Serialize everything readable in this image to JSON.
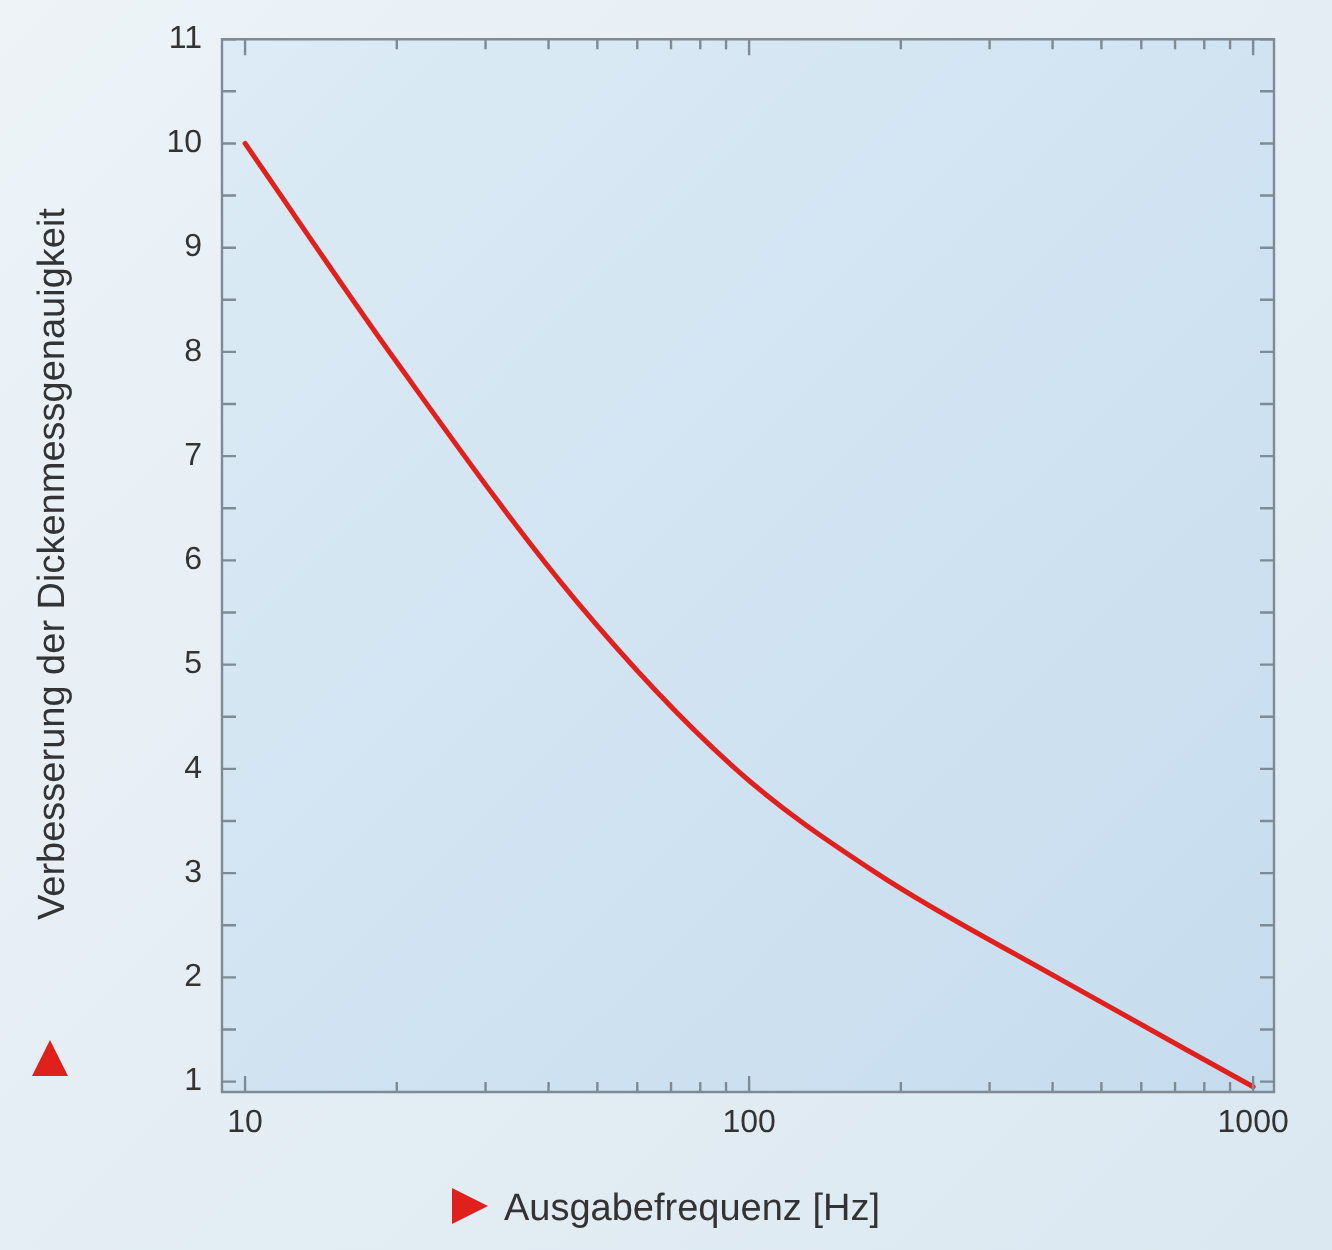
{
  "chart_data": {
    "type": "line",
    "xlabel": "Ausgabefrequenz [Hz]",
    "ylabel": "Verbesserung der Dickenmessgenauigkeit",
    "log": "x",
    "grid": false,
    "legend": false,
    "marker": "none",
    "line_style": "solid",
    "xlim": [
      9,
      1100
    ],
    "ylim": [
      0.9,
      11
    ],
    "xticks": [
      10,
      {
        "value": 20,
        "label": null
      },
      {
        "value": 30,
        "label": null
      },
      {
        "value": 40,
        "label": null
      },
      {
        "value": 50,
        "label": null
      },
      {
        "value": 60,
        "label": null
      },
      {
        "value": 70,
        "label": null
      },
      {
        "value": 80,
        "label": null
      },
      {
        "value": 90,
        "label": null
      },
      100,
      {
        "value": 200,
        "label": null
      },
      {
        "value": 300,
        "label": null
      },
      {
        "value": 400,
        "label": null
      },
      {
        "value": 500,
        "label": null
      },
      {
        "value": 600,
        "label": null
      },
      {
        "value": 700,
        "label": null
      },
      {
        "value": 800,
        "label": null
      },
      {
        "value": 900,
        "label": null
      },
      1000
    ],
    "yticks": [
      1,
      {
        "value": 1.5,
        "label": null
      },
      2,
      {
        "value": 2.5,
        "label": null
      },
      3,
      {
        "value": 3.5,
        "label": null
      },
      4,
      {
        "value": 4.5,
        "label": null
      },
      5,
      {
        "value": 5.5,
        "label": null
      },
      6,
      {
        "value": 6.5,
        "label": null
      },
      7,
      {
        "value": 7.5,
        "label": null
      },
      8,
      {
        "value": 8.5,
        "label": null
      },
      9,
      {
        "value": 9.5,
        "label": null
      },
      10,
      {
        "value": 10.5,
        "label": null
      },
      11
    ],
    "series": [
      {
        "color": "#e0201c",
        "x": [
          10,
          20,
          45.6,
          94,
          179,
          408,
          1000
        ],
        "values": [
          10,
          7.9,
          5.6,
          4.0,
          3.0,
          2.0,
          0.95
        ]
      }
    ]
  }
}
